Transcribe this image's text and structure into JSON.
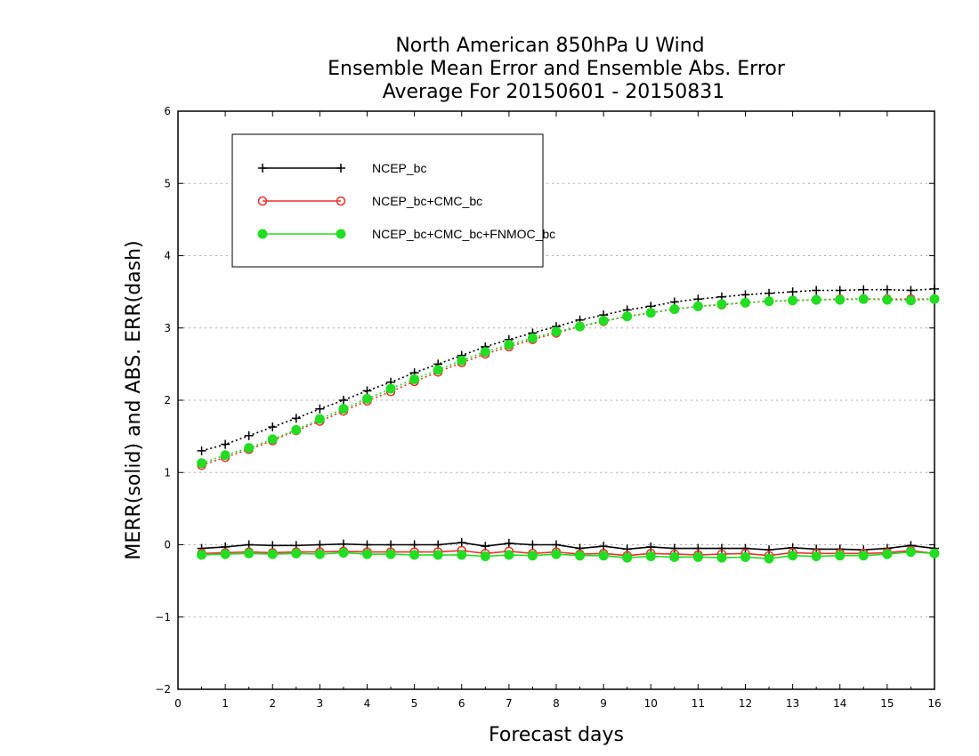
{
  "chart_data": {
    "type": "line",
    "title_lines": [
      "North American 850hPa U Wind",
      "Ensemble Mean Error and Ensemble Abs. Error",
      "Average For 20150601 - 20150831"
    ],
    "xlabel": "Forecast days",
    "ylabel": "MERR(solid) and ABS. ERR(dash)",
    "xlim": [
      0,
      16
    ],
    "ylim": [
      -2,
      6
    ],
    "xticks": [
      "0",
      "1",
      "2",
      "3",
      "4",
      "5",
      "6",
      "7",
      "8",
      "9",
      "10",
      "11",
      "12",
      "13",
      "14",
      "15",
      "16"
    ],
    "yticks": [
      "−2",
      "−1",
      "0",
      "1",
      "2",
      "3",
      "4",
      "5",
      "6"
    ],
    "grid": "horizontal dotted",
    "legend_position": "top-left",
    "x": [
      0.5,
      1,
      1.5,
      2,
      2.5,
      3,
      3.5,
      4,
      4.5,
      5,
      5.5,
      6,
      6.5,
      7,
      7.5,
      8,
      8.5,
      9,
      9.5,
      10,
      10.5,
      11,
      11.5,
      12,
      12.5,
      13,
      13.5,
      14,
      14.5,
      15,
      15.5,
      16
    ],
    "series": [
      {
        "name": "NCEP_bc",
        "color": "#000000",
        "marker": "plus",
        "merr": [
          -0.05,
          -0.03,
          0,
          -0.01,
          -0.01,
          0,
          0.01,
          0,
          0,
          0,
          0,
          0.03,
          -0.02,
          0.02,
          0,
          0,
          -0.05,
          -0.02,
          -0.06,
          -0.03,
          -0.05,
          -0.05,
          -0.05,
          -0.05,
          -0.07,
          -0.04,
          -0.06,
          -0.06,
          -0.07,
          -0.05,
          -0.01,
          -0.05
        ],
        "abs_err": [
          1.3,
          1.39,
          1.51,
          1.63,
          1.75,
          1.88,
          2.0,
          2.13,
          2.25,
          2.38,
          2.5,
          2.62,
          2.74,
          2.84,
          2.93,
          3.02,
          3.11,
          3.18,
          3.25,
          3.3,
          3.36,
          3.4,
          3.43,
          3.46,
          3.48,
          3.5,
          3.52,
          3.52,
          3.53,
          3.53,
          3.52,
          3.54
        ]
      },
      {
        "name": "NCEP_bc+CMC_bc",
        "color": "#e8302a",
        "marker": "open-circle",
        "merr": [
          -0.12,
          -0.11,
          -0.1,
          -0.11,
          -0.1,
          -0.1,
          -0.09,
          -0.1,
          -0.1,
          -0.1,
          -0.1,
          -0.08,
          -0.12,
          -0.09,
          -0.12,
          -0.1,
          -0.13,
          -0.12,
          -0.15,
          -0.12,
          -0.13,
          -0.14,
          -0.13,
          -0.12,
          -0.15,
          -0.11,
          -0.12,
          -0.12,
          -0.12,
          -0.11,
          -0.08,
          -0.12
        ],
        "abs_err": [
          1.1,
          1.21,
          1.32,
          1.44,
          1.58,
          1.71,
          1.85,
          1.99,
          2.12,
          2.26,
          2.39,
          2.52,
          2.64,
          2.74,
          2.84,
          2.93,
          3.02,
          3.09,
          3.16,
          3.21,
          3.26,
          3.3,
          3.32,
          3.35,
          3.37,
          3.38,
          3.39,
          3.4,
          3.4,
          3.4,
          3.4,
          3.4
        ]
      },
      {
        "name": "NCEP_bc+CMC_bc+FNMOC_bc",
        "color": "#22dd22",
        "marker": "filled-circle",
        "merr": [
          -0.14,
          -0.13,
          -0.12,
          -0.13,
          -0.12,
          -0.13,
          -0.11,
          -0.13,
          -0.13,
          -0.14,
          -0.14,
          -0.14,
          -0.16,
          -0.14,
          -0.15,
          -0.13,
          -0.15,
          -0.15,
          -0.18,
          -0.16,
          -0.17,
          -0.17,
          -0.18,
          -0.17,
          -0.19,
          -0.15,
          -0.16,
          -0.15,
          -0.15,
          -0.13,
          -0.1,
          -0.12
        ],
        "abs_err": [
          1.13,
          1.24,
          1.34,
          1.46,
          1.59,
          1.74,
          1.88,
          2.02,
          2.16,
          2.29,
          2.42,
          2.55,
          2.67,
          2.77,
          2.86,
          2.95,
          3.02,
          3.1,
          3.16,
          3.21,
          3.26,
          3.3,
          3.33,
          3.35,
          3.37,
          3.38,
          3.39,
          3.39,
          3.4,
          3.39,
          3.38,
          3.4
        ]
      }
    ]
  }
}
